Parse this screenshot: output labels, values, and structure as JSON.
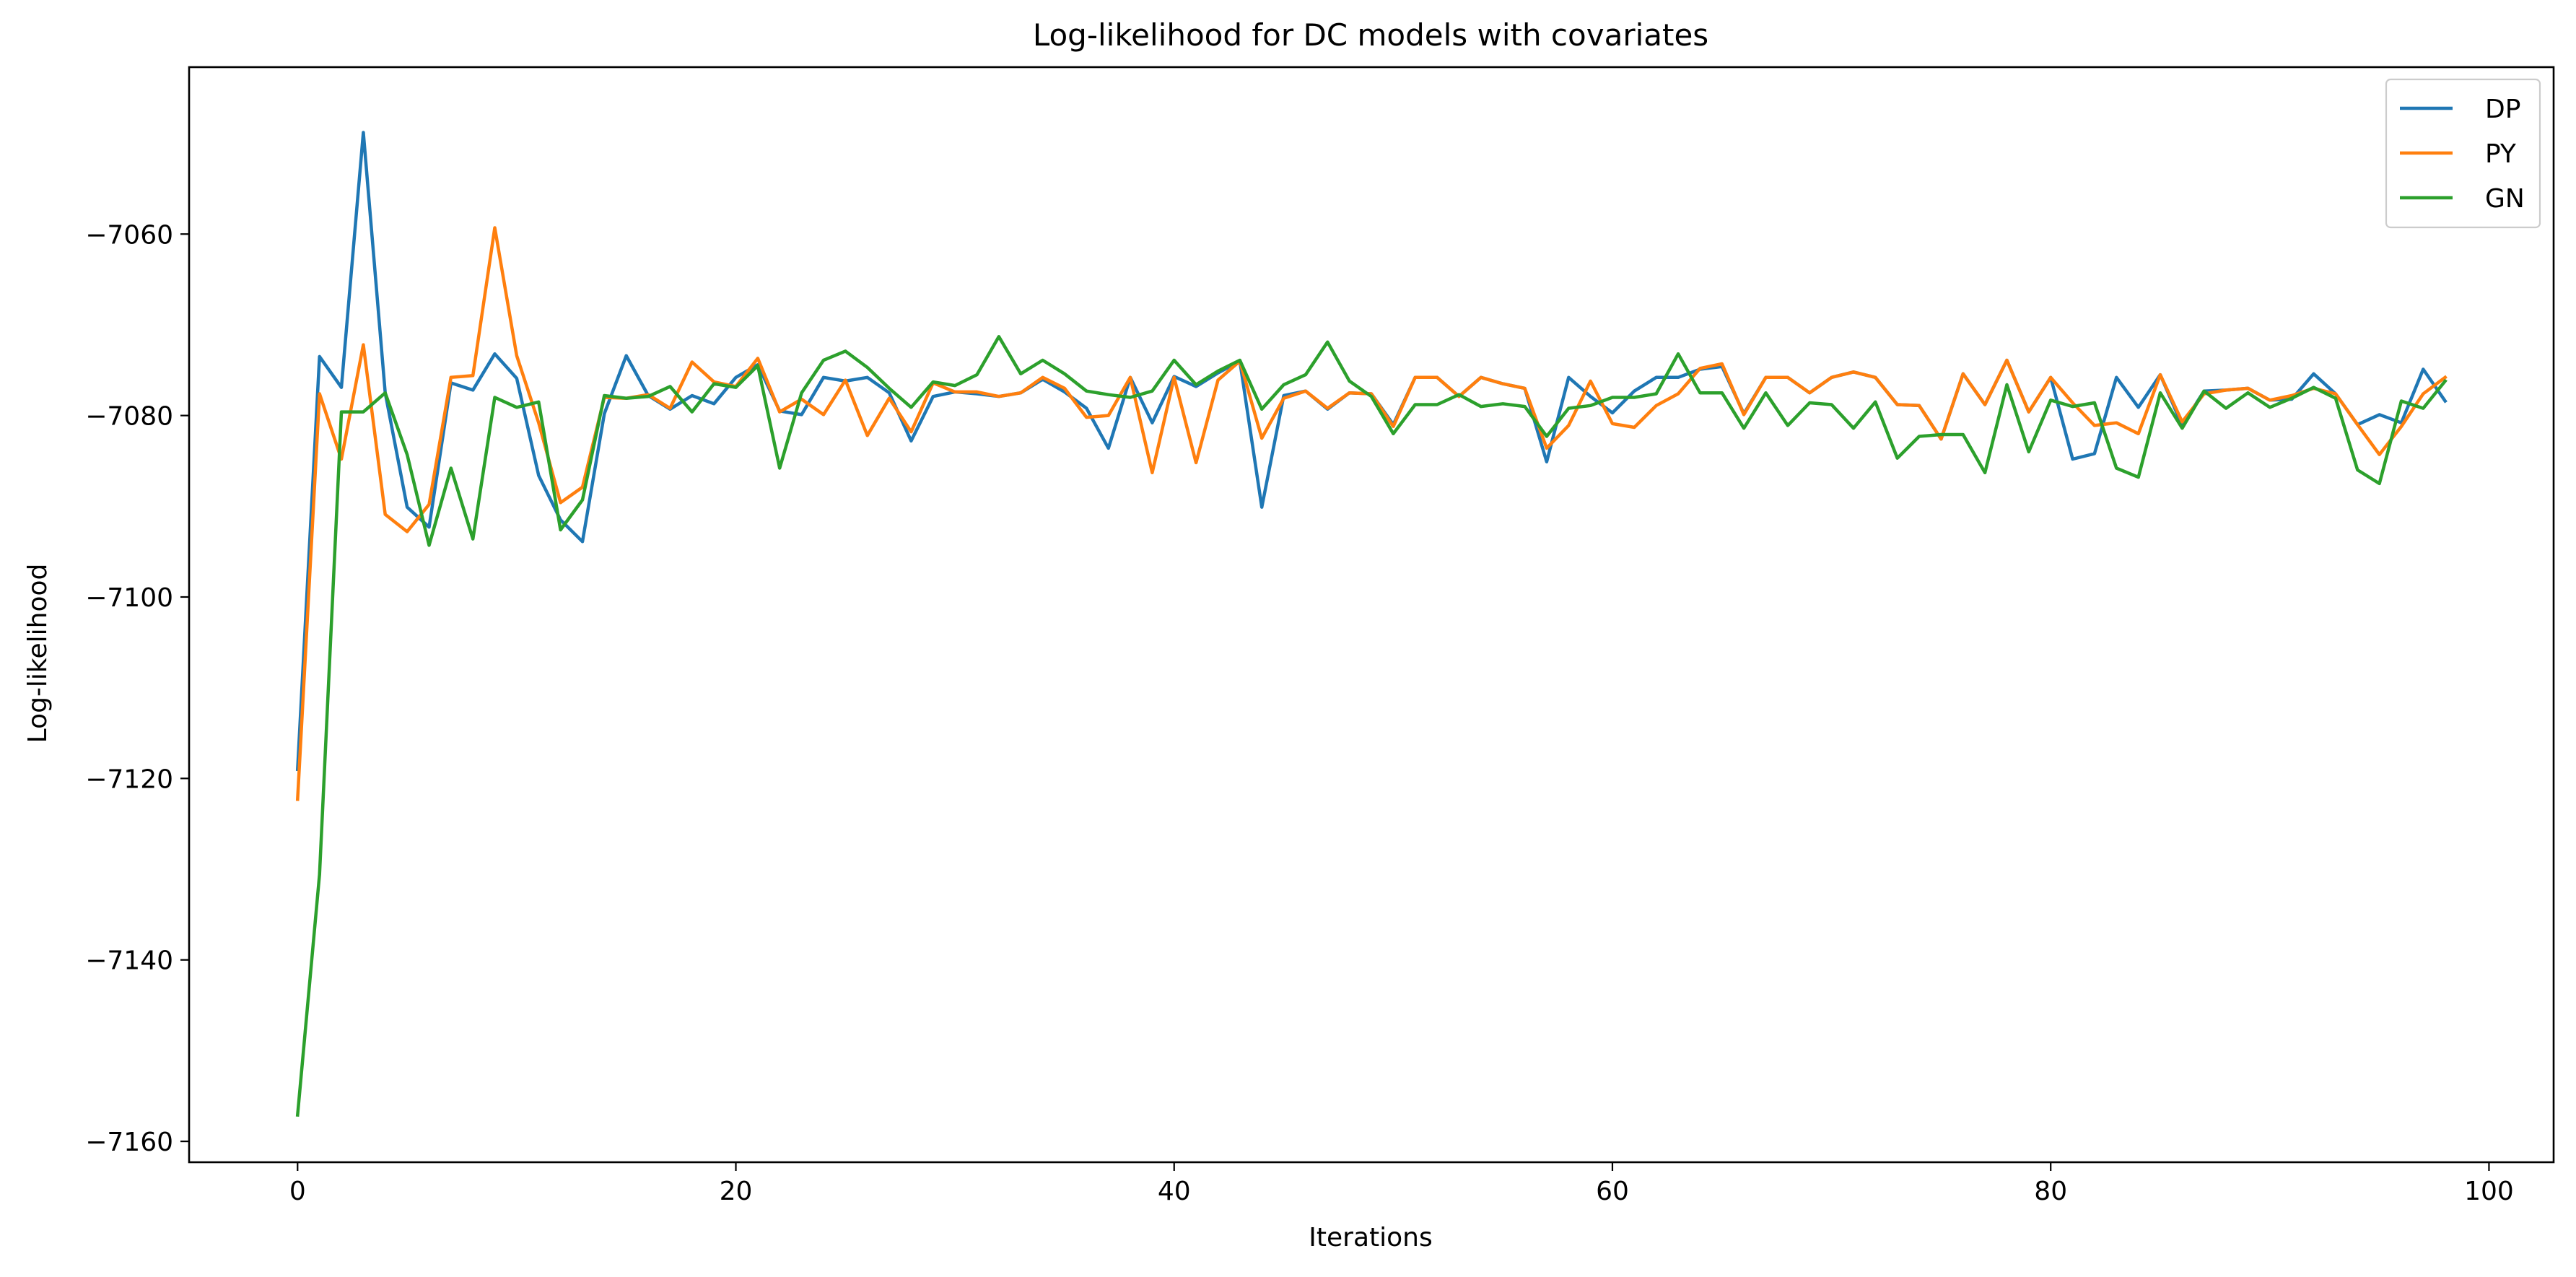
{
  "chart_data": {
    "type": "line",
    "title": "Log-likelihood for DC models with covariates",
    "xlabel": "Iterations",
    "ylabel": "Log-likelihood",
    "xlim": [
      -4.95,
      102.95
    ],
    "ylim": [
      -7162.3,
      -7041.6
    ],
    "xticks": [
      0,
      20,
      40,
      60,
      80,
      100
    ],
    "yticks": [
      -7160,
      -7140,
      -7120,
      -7100,
      -7080,
      -7060
    ],
    "ytick_labels": [
      "−7160",
      "−7140",
      "−7120",
      "−7100",
      "−7080",
      "−7060"
    ],
    "grid": false,
    "legend_position": "top-right",
    "x": [
      0,
      1,
      2,
      3,
      4,
      5,
      6,
      7,
      8,
      9,
      10,
      11,
      12,
      13,
      14,
      15,
      16,
      17,
      18,
      19,
      20,
      21,
      22,
      23,
      24,
      25,
      26,
      27,
      28,
      29,
      30,
      31,
      32,
      33,
      34,
      35,
      36,
      37,
      38,
      39,
      40,
      41,
      42,
      43,
      44,
      45,
      46,
      47,
      48,
      49,
      50,
      51,
      52,
      53,
      54,
      55,
      56,
      57,
      58,
      59,
      60,
      61,
      62,
      63,
      64,
      65,
      66,
      67,
      68,
      69,
      70,
      71,
      72,
      73,
      74,
      75,
      76,
      77,
      78,
      79,
      80,
      81,
      82,
      83,
      84,
      85,
      86,
      87,
      88,
      89,
      90,
      91,
      92,
      93,
      94,
      95,
      96,
      97,
      98
    ],
    "series": [
      {
        "name": "DP",
        "color": "#1f77b4",
        "values": [
          -7119,
          -7073.5,
          -7076.9,
          -7048.8,
          -7077.5,
          -7090.1,
          -7092.3,
          -7076.4,
          -7077.2,
          -7073.2,
          -7075.9,
          -7086.6,
          -7091.5,
          -7093.9,
          -7079.8,
          -7073.4,
          -7077.8,
          -7079.3,
          -7077.8,
          -7078.7,
          -7075.8,
          -7074.4,
          -7079.5,
          -7079.9,
          -7075.8,
          -7076.2,
          -7075.8,
          -7077.5,
          -7082.8,
          -7077.9,
          -7077.4,
          -7077.6,
          -7077.9,
          -7077.5,
          -7076,
          -7077.4,
          -7079.2,
          -7083.6,
          -7075.8,
          -7080.8,
          -7075.7,
          -7076.8,
          -7075.3,
          -7074,
          -7090.1,
          -7077.8,
          -7077.3,
          -7079.3,
          -7077.5,
          -7077.6,
          -7081,
          -7075.8,
          -7075.8,
          -7077.9,
          -7075.8,
          -7076.5,
          -7077,
          -7085.1,
          -7075.8,
          -7077.9,
          -7079.7,
          -7077.3,
          -7075.8,
          -7075.8,
          -7074.9,
          -7074.6,
          -7079.8,
          -7075.8,
          -7075.8,
          -7077.5,
          -7075.8,
          -7075.2,
          -7075.8,
          -7078.8,
          -7078.9,
          -7082.6,
          -7075.4,
          -7078.8,
          -7073.9,
          -7079.6,
          -7075.8,
          -7084.8,
          -7084.2,
          -7075.8,
          -7079.1,
          -7075.5,
          -7081.1,
          -7077.3,
          -7077.2,
          -7077,
          -7078.3,
          -7078.2,
          -7075.4,
          -7077.6,
          -7081,
          -7079.9,
          -7080.8,
          -7074.9,
          -7078.4
        ]
      },
      {
        "name": "PY",
        "color": "#ff7f0e",
        "values": [
          -7122.3,
          -7077.6,
          -7084.8,
          -7072.2,
          -7090.9,
          -7092.8,
          -7089.8,
          -7075.8,
          -7075.6,
          -7059.3,
          -7073.4,
          -7080.8,
          -7089.6,
          -7087.9,
          -7078,
          -7078.1,
          -7077.7,
          -7079.2,
          -7074.1,
          -7076.3,
          -7076.8,
          -7073.7,
          -7079.6,
          -7078.2,
          -7079.9,
          -7076.1,
          -7082.2,
          -7078.1,
          -7081.8,
          -7076.4,
          -7077.4,
          -7077.4,
          -7077.9,
          -7077.5,
          -7075.8,
          -7077,
          -7080.2,
          -7080,
          -7075.8,
          -7086.3,
          -7075.8,
          -7085.2,
          -7076.1,
          -7074,
          -7082.5,
          -7078.1,
          -7077.3,
          -7079.2,
          -7077.5,
          -7077.6,
          -7081.2,
          -7075.8,
          -7075.8,
          -7077.9,
          -7075.8,
          -7076.5,
          -7077,
          -7083.6,
          -7081.1,
          -7076.2,
          -7080.9,
          -7081.3,
          -7078.9,
          -7077.6,
          -7074.8,
          -7074.3,
          -7079.9,
          -7075.8,
          -7075.8,
          -7077.5,
          -7075.8,
          -7075.2,
          -7075.8,
          -7078.8,
          -7078.9,
          -7082.6,
          -7075.4,
          -7078.8,
          -7073.9,
          -7079.6,
          -7075.8,
          -7078.6,
          -7081.1,
          -7080.8,
          -7082,
          -7075.5,
          -7080.7,
          -7077.6,
          -7077.2,
          -7077,
          -7078.3,
          -7077.8,
          -7077,
          -7077.6,
          -7081,
          -7084.3,
          -7081.2,
          -7077.6,
          -7075.8
        ]
      },
      {
        "name": "GN",
        "color": "#2ca02c",
        "values": [
          -7157.1,
          -7130.6,
          -7079.6,
          -7079.6,
          -7077.5,
          -7084.3,
          -7094.3,
          -7085.8,
          -7093.6,
          -7078,
          -7079.1,
          -7078.5,
          -7092.6,
          -7089.3,
          -7077.8,
          -7078.1,
          -7077.9,
          -7076.8,
          -7079.6,
          -7076.5,
          -7076.9,
          -7074.5,
          -7085.8,
          -7077.5,
          -7073.9,
          -7072.9,
          -7074.7,
          -7077,
          -7079.1,
          -7076.3,
          -7076.7,
          -7075.5,
          -7071.3,
          -7075.4,
          -7073.9,
          -7075.4,
          -7077.3,
          -7077.7,
          -7078,
          -7077.3,
          -7073.9,
          -7076.6,
          -7075.1,
          -7073.9,
          -7079.3,
          -7076.6,
          -7075.5,
          -7071.9,
          -7076.2,
          -7077.9,
          -7082,
          -7078.8,
          -7078.8,
          -7077.7,
          -7079,
          -7078.7,
          -7079,
          -7082.3,
          -7079.2,
          -7078.9,
          -7078,
          -7078,
          -7077.6,
          -7073.2,
          -7077.5,
          -7077.5,
          -7081.4,
          -7077.5,
          -7081.1,
          -7078.6,
          -7078.8,
          -7081.4,
          -7078.5,
          -7084.7,
          -7082.3,
          -7082.1,
          -7082.1,
          -7086.3,
          -7076.6,
          -7084,
          -7078.3,
          -7079,
          -7078.6,
          -7085.8,
          -7086.8,
          -7077.5,
          -7081.4,
          -7077.3,
          -7079.2,
          -7077.5,
          -7079.1,
          -7078.1,
          -7076.9,
          -7078.1,
          -7086,
          -7087.5,
          -7078.4,
          -7079.2,
          -7076.2
        ]
      }
    ]
  }
}
